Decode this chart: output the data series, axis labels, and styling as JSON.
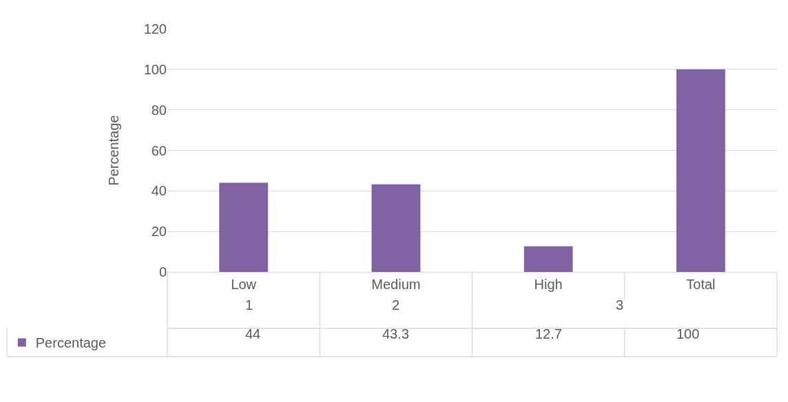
{
  "chart_data": {
    "type": "bar",
    "ylabel": "Percentage",
    "categories": [
      "Low",
      "Medium",
      "High",
      "Total"
    ],
    "series": [
      {
        "name": "Percentage",
        "color": "#7f62a1",
        "values": [
          44,
          43.3,
          12.7,
          100
        ]
      }
    ],
    "annotations": [
      "1",
      "2",
      "3"
    ],
    "ylim": [
      0,
      120
    ],
    "yticks": [
      0,
      20,
      40,
      60,
      80,
      100,
      120
    ],
    "grid": "y",
    "legend": "bottom left",
    "data_labels": true
  }
}
